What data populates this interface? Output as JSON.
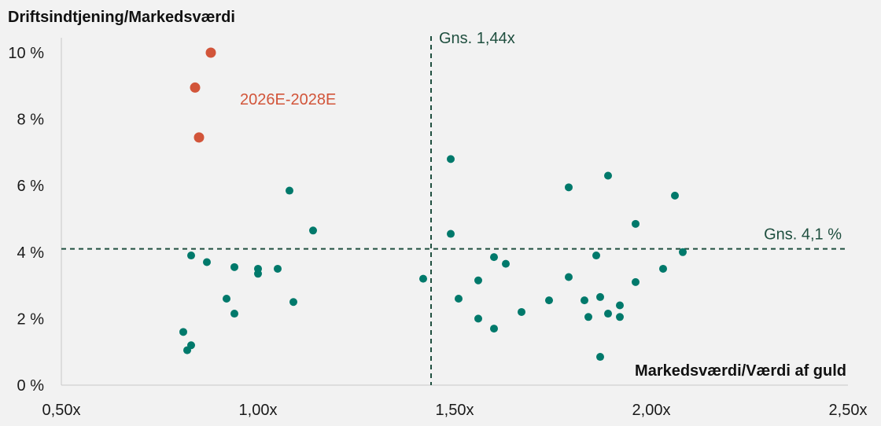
{
  "chart_data": {
    "type": "scatter",
    "ylabel": "Driftsindtjening/Markedsværdi",
    "xlabel": "Markedsværdi/Værdi af guld",
    "xlim": [
      0.5,
      2.5
    ],
    "ylim": [
      0,
      10
    ],
    "x_ticks": [
      0.5,
      1.0,
      1.5,
      2.0,
      2.5
    ],
    "x_tick_labels": [
      "0,50x",
      "1,00x",
      "1,50x",
      "2,00x",
      "2,50x"
    ],
    "y_ticks": [
      0,
      2,
      4,
      6,
      8,
      10
    ],
    "y_tick_labels": [
      "0 %",
      "2 %",
      "4 %",
      "6 %",
      "8 %",
      "10 %"
    ],
    "grid": false,
    "reference_lines": [
      {
        "orientation": "vertical",
        "value": 1.44,
        "label": "Gns. 1,44x",
        "color": "#1f4f3f"
      },
      {
        "orientation": "horizontal",
        "value": 4.1,
        "label": "Gns. 4,1 %",
        "color": "#1f4f3f"
      }
    ],
    "series": [
      {
        "color": "#00796b",
        "points": [
          [
            0.81,
            1.6
          ],
          [
            0.82,
            1.05
          ],
          [
            0.83,
            1.2
          ],
          [
            0.83,
            3.9
          ],
          [
            0.87,
            3.7
          ],
          [
            0.92,
            2.6
          ],
          [
            0.94,
            2.15
          ],
          [
            0.94,
            3.55
          ],
          [
            1.0,
            3.35
          ],
          [
            1.0,
            3.5
          ],
          [
            1.05,
            3.5
          ],
          [
            1.08,
            5.85
          ],
          [
            1.09,
            2.5
          ],
          [
            1.14,
            4.65
          ],
          [
            1.42,
            3.2
          ],
          [
            1.49,
            6.8
          ],
          [
            1.49,
            4.55
          ],
          [
            1.51,
            2.6
          ],
          [
            1.56,
            3.15
          ],
          [
            1.56,
            2.0
          ],
          [
            1.6,
            1.7
          ],
          [
            1.6,
            3.85
          ],
          [
            1.63,
            3.65
          ],
          [
            1.67,
            2.2
          ],
          [
            1.74,
            2.55
          ],
          [
            1.79,
            5.95
          ],
          [
            1.79,
            3.25
          ],
          [
            1.83,
            2.55
          ],
          [
            1.84,
            2.05
          ],
          [
            1.86,
            3.9
          ],
          [
            1.87,
            2.65
          ],
          [
            1.87,
            0.85
          ],
          [
            1.89,
            6.3
          ],
          [
            1.89,
            2.15
          ],
          [
            1.92,
            2.4
          ],
          [
            1.92,
            2.05
          ],
          [
            1.96,
            4.85
          ],
          [
            1.96,
            3.1
          ],
          [
            2.03,
            3.5
          ],
          [
            2.06,
            5.7
          ],
          [
            2.08,
            4.0
          ]
        ]
      },
      {
        "name": "2026E-2028E",
        "color": "#d2553a",
        "points": [
          [
            0.88,
            10.0
          ],
          [
            0.84,
            8.95
          ],
          [
            0.85,
            7.45
          ]
        ]
      }
    ]
  }
}
